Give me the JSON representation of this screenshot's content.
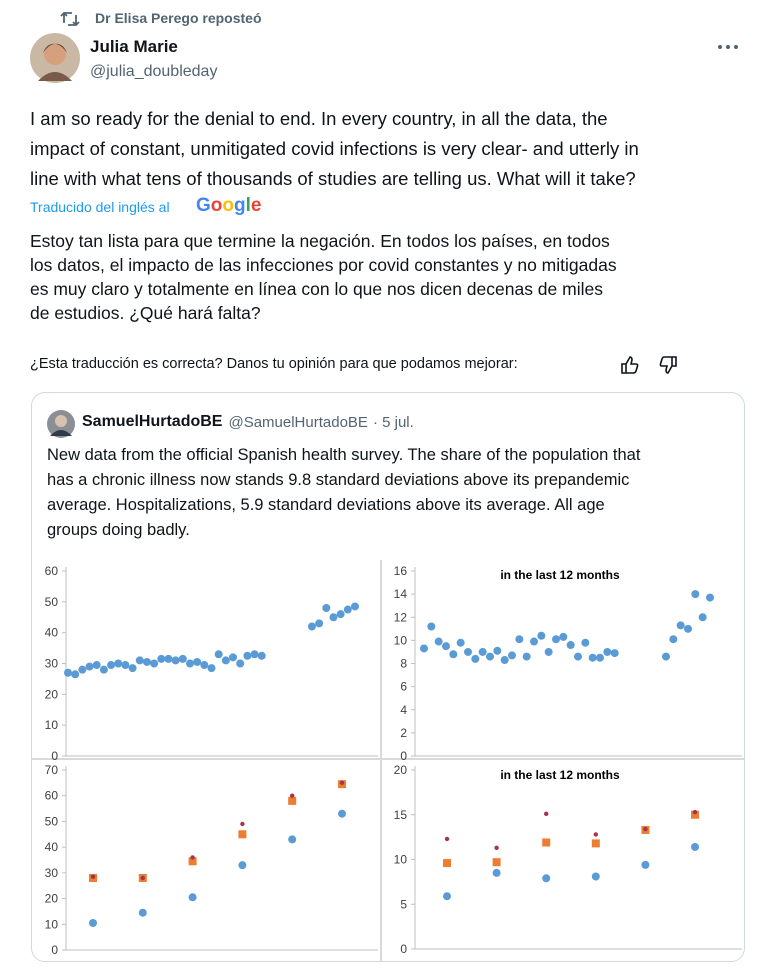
{
  "repost_label": "Dr Elisa Perego reposteó",
  "author": {
    "name": "Julia Marie",
    "handle": "@julia_doubleday"
  },
  "text_lines": [
    "I am so ready for the denial to end. In every country, in all the data, the",
    "impact of constant, unmitigated covid infections is very clear- and utterly in",
    "line with what tens of thousands of studies are telling us. What will it take?"
  ],
  "translation": {
    "label": "Traducido del inglés al",
    "provider": "Google",
    "lines": [
      "Estoy tan lista para que termine la negación. En todos los países, en todos",
      "los datos, el impacto de las infecciones por covid constantes y no mitigadas",
      "es muy claro y totalmente en línea con lo que nos dicen decenas de miles",
      "de estudios. ¿Qué hará falta?"
    ],
    "feedback": "¿Esta traducción es correcta? Danos tu opinión para que podamos mejorar:"
  },
  "quote": {
    "name": "SamuelHurtadoBE",
    "handle": "@SamuelHurtadoBE",
    "date": "· 5 jul.",
    "lines": [
      "New data from the official Spanish health survey. The share of the population that",
      "has a chronic illness now stands 9.8 standard deviations above its prepandemic",
      "average. Hospitalizations, 5.9 standard deviations above its average. All age",
      "groups doing badly."
    ]
  },
  "chart_data": [
    {
      "type": "scatter",
      "color": "#5b9bd5",
      "ylim": [
        0,
        60
      ],
      "yticks": [
        0,
        10,
        20,
        30,
        40,
        50,
        60
      ],
      "values": [
        27,
        26.5,
        28,
        29,
        29.5,
        28,
        29.5,
        30,
        29.5,
        28.5,
        31,
        30.5,
        30,
        31.5,
        31.5,
        31,
        31.5,
        30,
        30.5,
        29.5,
        28.5,
        33,
        31,
        32,
        30,
        32.5,
        33,
        32.5,
        null,
        null,
        null,
        null,
        null,
        null,
        42,
        43,
        48,
        45,
        46,
        47.5,
        48.5
      ]
    },
    {
      "type": "scatter",
      "color": "#5b9bd5",
      "annotation": "in the last 12 months",
      "ylim": [
        0,
        16
      ],
      "yticks": [
        0,
        2,
        4,
        6,
        8,
        10,
        12,
        14,
        16
      ],
      "values": [
        9.3,
        11.2,
        9.9,
        9.5,
        8.8,
        9.8,
        9,
        8.4,
        9,
        8.6,
        9.1,
        8.3,
        8.7,
        10.1,
        8.6,
        9.9,
        10.4,
        9,
        10.1,
        10.3,
        9.6,
        8.6,
        9.8,
        8.5,
        8.5,
        9,
        8.9,
        null,
        null,
        null,
        null,
        null,
        null,
        8.6,
        10.1,
        11.3,
        11,
        14,
        12,
        13.7
      ]
    },
    {
      "type": "scatter",
      "ylim": [
        0,
        70
      ],
      "yticks": [
        0,
        10,
        20,
        30,
        40,
        50,
        60,
        70
      ],
      "series": [
        {
          "color": "#5b9bd5",
          "marker": "circle",
          "values": [
            10.5,
            14.5,
            20.5,
            33,
            43,
            53
          ]
        },
        {
          "color": "#ed7d31",
          "marker": "square",
          "values": [
            28,
            28,
            34.5,
            45,
            58,
            64.5
          ]
        },
        {
          "color": "#a5344a",
          "marker": "dot",
          "values": [
            28.5,
            28,
            36,
            49,
            60,
            65
          ]
        }
      ]
    },
    {
      "type": "scatter",
      "annotation": "in the last 12 months",
      "ylim": [
        0,
        20
      ],
      "yticks": [
        0,
        5,
        10,
        15,
        20
      ],
      "series": [
        {
          "color": "#5b9bd5",
          "marker": "circle",
          "values": [
            5.9,
            8.5,
            7.9,
            8.1,
            9.4,
            11.4
          ]
        },
        {
          "color": "#ed7d31",
          "marker": "square",
          "values": [
            9.6,
            9.7,
            11.9,
            11.8,
            13.3,
            15
          ]
        },
        {
          "color": "#a5344a",
          "marker": "dot",
          "values": [
            12.3,
            11.3,
            15.1,
            12.8,
            13.4,
            15.3
          ]
        }
      ]
    }
  ]
}
